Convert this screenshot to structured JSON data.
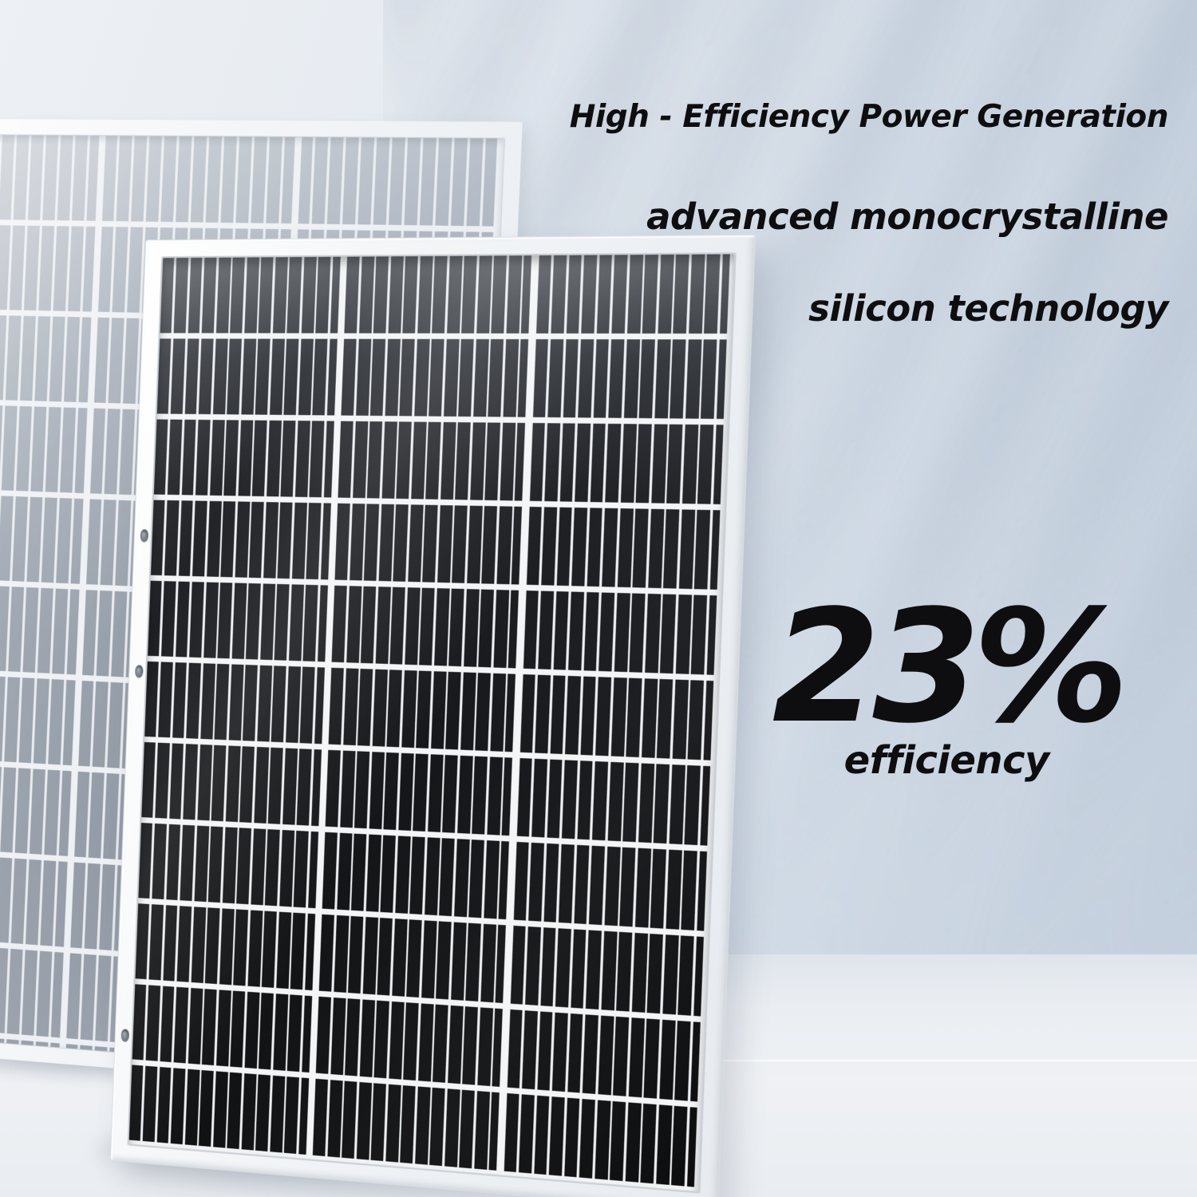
{
  "headline": {
    "line1": "High - Efficiency Power Generation",
    "line2": "advanced monocrystalline",
    "line3": "silicon technology"
  },
  "stat": {
    "value": "23%",
    "label": "efficiency"
  },
  "scene": {
    "front_panel": "black monocrystalline solar panel with silver aluminum frame",
    "back_panel": "light gray solar panel standing behind",
    "mounting_holes": 3,
    "front_panel_row_count": 11,
    "front_panel_column_groups": 3,
    "back_panel_column_groups": 3
  },
  "colors": {
    "text": "#0e0e10",
    "wall_light": "#edf0f4",
    "wall_shade": "#c3cfdd",
    "floor": "#eff1f4",
    "frame": "#f4f6f8",
    "cell_black": "#111215",
    "cell_gray": "#9aa2ad",
    "grid_line": "#f3f5f7"
  }
}
